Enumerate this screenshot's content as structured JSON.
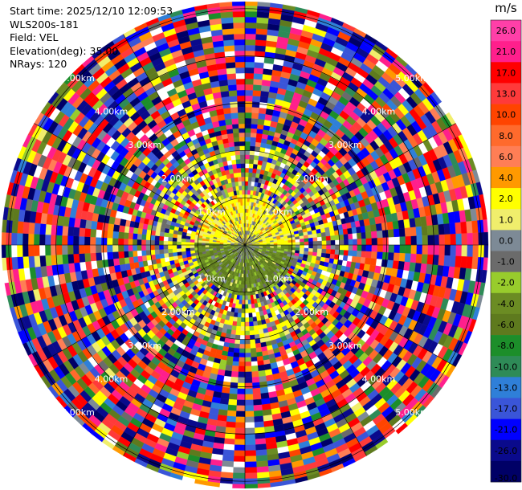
{
  "header": {
    "start_time": "Start time: 2025/12/10 12:09:53",
    "instrument": "WLS200s-181",
    "field": "Field: VEL",
    "elevation": "Elevation(deg): 35.00",
    "nrays": "NRays: 120"
  },
  "chart_data": {
    "type": "heatmap",
    "projection": "polar-ppi",
    "field": "VEL",
    "n_rays": 120,
    "range_rings_km": [
      1.0,
      2.0,
      3.0,
      4.0,
      5.0
    ],
    "ring_labels": [
      "1.0km",
      "2.00km",
      "3.00km",
      "4.00km",
      "5.00km"
    ],
    "max_range_km": 5.15,
    "spoke_step_deg": 30,
    "colorbar": {
      "unit_label": "m/s",
      "ticks": [
        "26.0",
        "21.0",
        "17.0",
        "13.0",
        "10.0",
        "8.0",
        "6.0",
        "4.0",
        "2.0",
        "1.0",
        "0.0",
        "-1.0",
        "-2.0",
        "-4.0",
        "-6.0",
        "-8.0",
        "-10.0",
        "-13.0",
        "-17.0",
        "-21.0",
        "-26.0",
        "-30.0"
      ],
      "bins": [
        {
          "min": 26,
          "max": 30,
          "color": "#ff3fa8"
        },
        {
          "min": 21,
          "max": 26,
          "color": "#ff1f8c"
        },
        {
          "min": 17,
          "max": 21,
          "color": "#ff0000"
        },
        {
          "min": 13,
          "max": 17,
          "color": "#ff3a3a"
        },
        {
          "min": 10,
          "max": 13,
          "color": "#ff4400"
        },
        {
          "min": 8,
          "max": 10,
          "color": "#ff6a2c"
        },
        {
          "min": 6,
          "max": 8,
          "color": "#ff7e55"
        },
        {
          "min": 4,
          "max": 6,
          "color": "#ff9900"
        },
        {
          "min": 2,
          "max": 4,
          "color": "#ffff00"
        },
        {
          "min": 1,
          "max": 2,
          "color": "#f0ee6c"
        },
        {
          "min": 0,
          "max": 1,
          "color": "#7d8a96"
        },
        {
          "min": -1,
          "max": 0,
          "color": "#6b6b6b"
        },
        {
          "min": -2,
          "max": -1,
          "color": "#98cc2c"
        },
        {
          "min": -4,
          "max": -2,
          "color": "#6b8c23"
        },
        {
          "min": -6,
          "max": -4,
          "color": "#5e7a1e"
        },
        {
          "min": -8,
          "max": -6,
          "color": "#1c8e2a"
        },
        {
          "min": -10,
          "max": -8,
          "color": "#2e8b57"
        },
        {
          "min": -13,
          "max": -10,
          "color": "#2f7fd8"
        },
        {
          "min": -17,
          "max": -13,
          "color": "#3a55d8"
        },
        {
          "min": -21,
          "max": -17,
          "color": "#0000ff"
        },
        {
          "min": -26,
          "max": -21,
          "color": "#0a0a8c"
        },
        {
          "min": -30,
          "max": -26,
          "color": "#000066"
        }
      ]
    }
  }
}
